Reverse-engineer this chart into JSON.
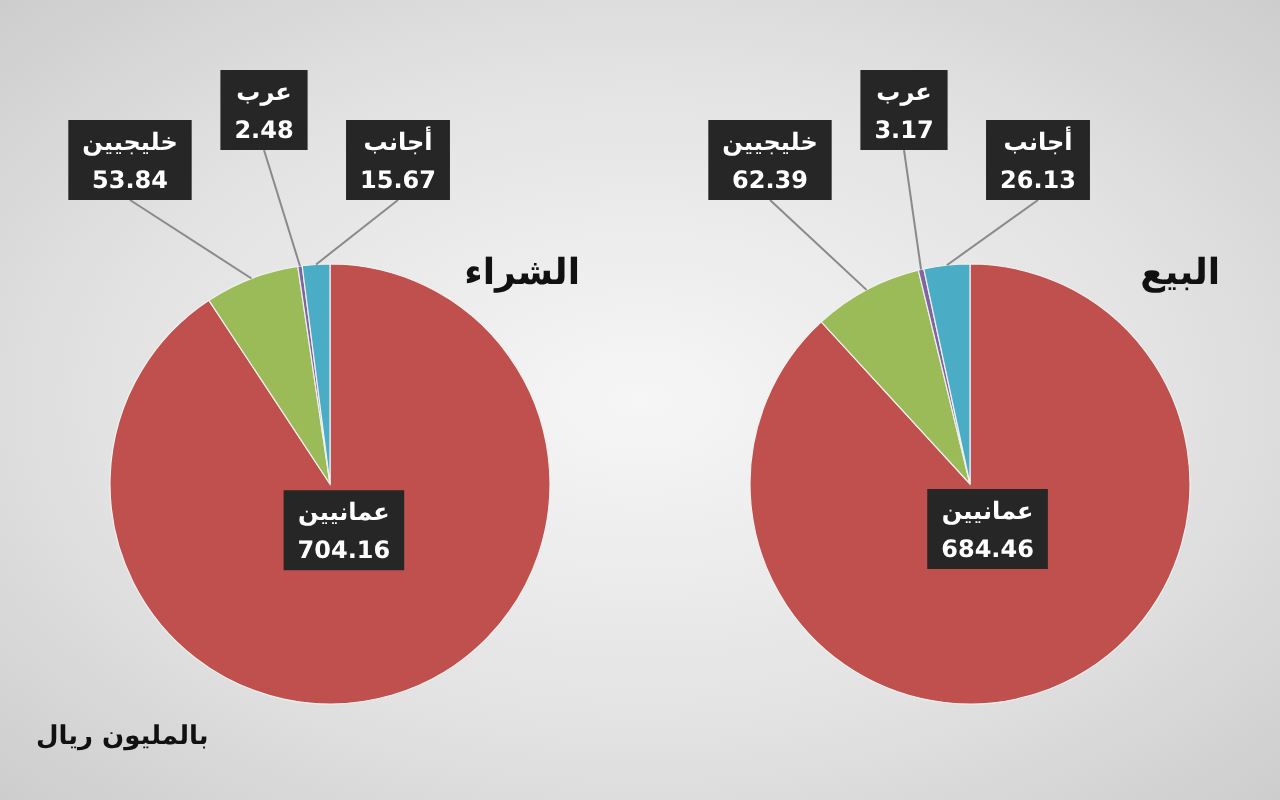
{
  "chart_data": [
    {
      "type": "pie",
      "title": "الشراء",
      "categories": [
        "عمانيين",
        "خليجيين",
        "عرب",
        "أجانب"
      ],
      "values": [
        704.16,
        53.84,
        2.48,
        15.67
      ],
      "colors": [
        "#c0504d",
        "#9bbb59",
        "#8064a2",
        "#4bacc6"
      ],
      "data_labels": true,
      "annotations": [
        "بالمليون ريال"
      ]
    },
    {
      "type": "pie",
      "title": "البيع",
      "categories": [
        "عمانيين",
        "خليجيين",
        "عرب",
        "أجانب"
      ],
      "values": [
        684.46,
        62.39,
        3.17,
        26.13
      ],
      "colors": [
        "#c0504d",
        "#9bbb59",
        "#8064a2",
        "#4bacc6"
      ],
      "data_labels": true
    }
  ]
}
